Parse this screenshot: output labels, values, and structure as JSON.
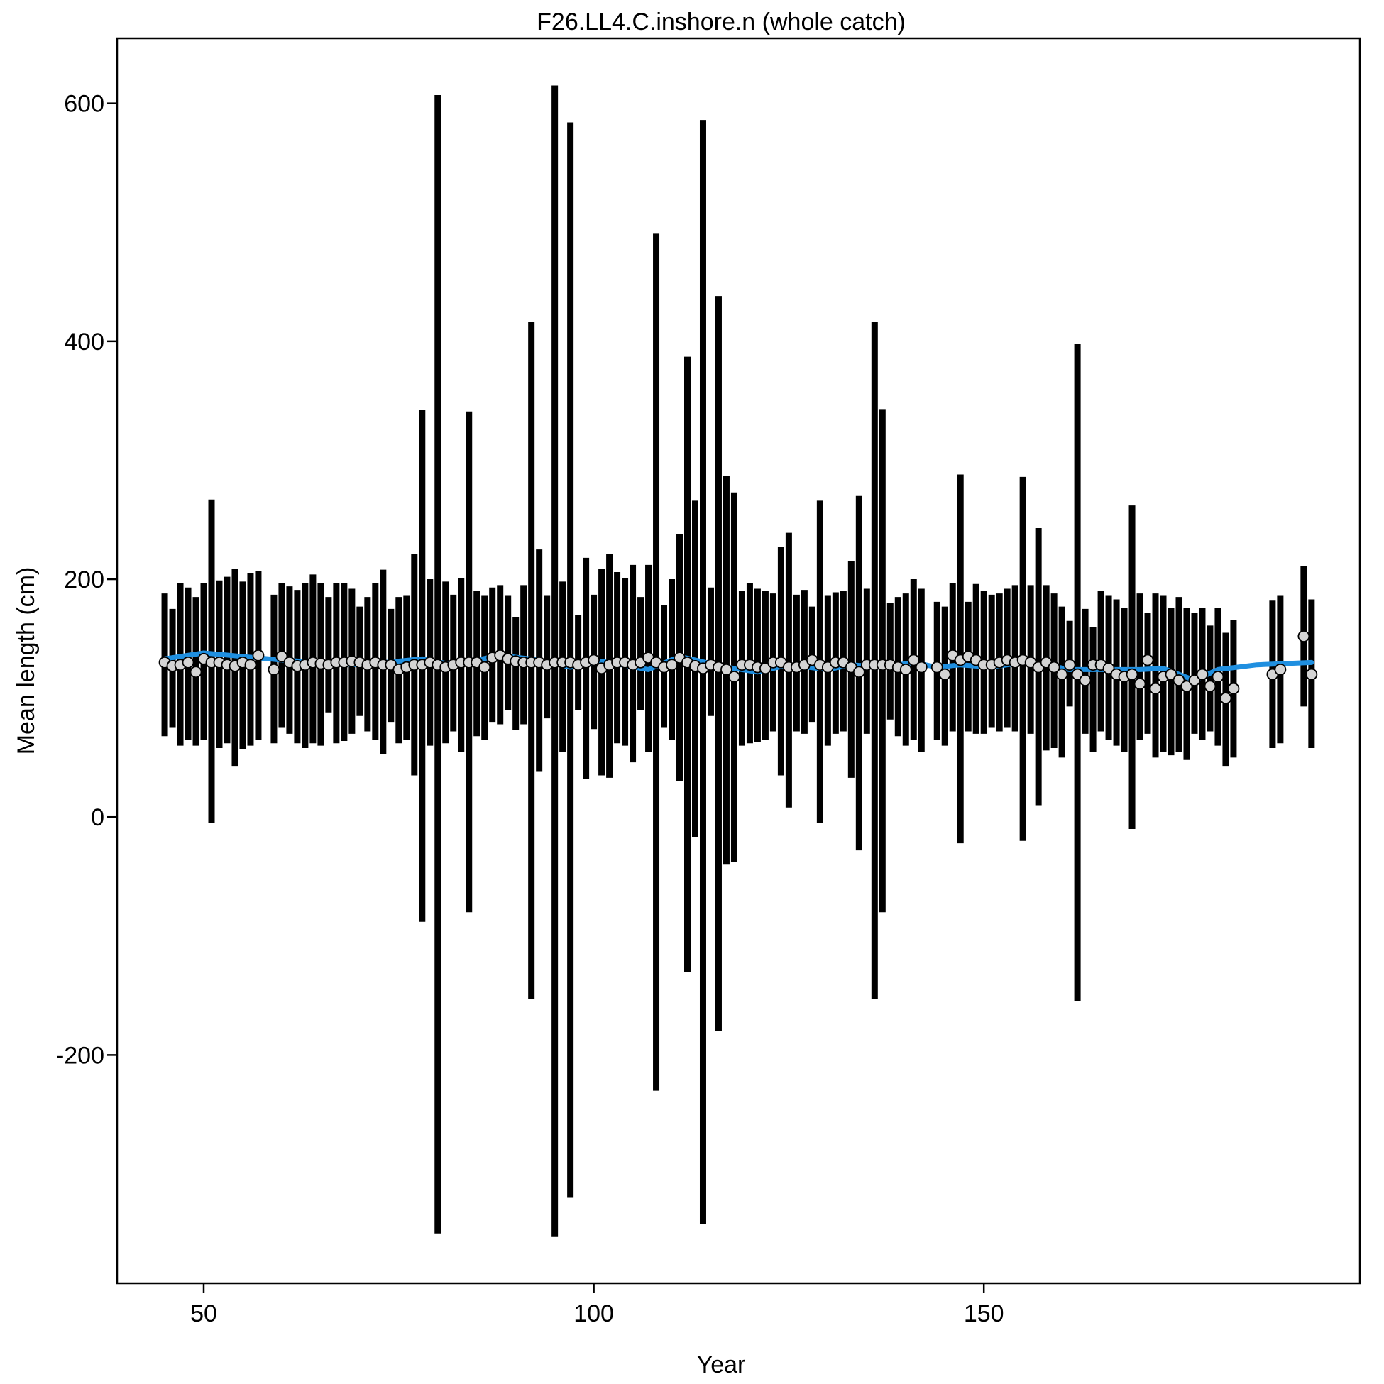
{
  "chart_data": {
    "type": "errorbar",
    "title": "F26.LL4.C.inshore.n (whole catch)",
    "xlabel": "Year",
    "ylabel": "Mean length (cm)",
    "x": [
      45,
      46,
      47,
      48,
      49,
      50,
      51,
      52,
      53,
      54,
      55,
      56,
      57,
      59,
      60,
      61,
      62,
      63,
      64,
      65,
      66,
      67,
      68,
      69,
      70,
      71,
      72,
      73,
      74,
      75,
      76,
      77,
      78,
      79,
      80,
      81,
      82,
      83,
      84,
      85,
      86,
      87,
      88,
      89,
      90,
      91,
      92,
      93,
      94,
      95,
      96,
      97,
      98,
      99,
      100,
      101,
      102,
      103,
      104,
      105,
      106,
      107,
      108,
      109,
      110,
      111,
      112,
      113,
      114,
      115,
      116,
      117,
      118,
      119,
      120,
      121,
      122,
      123,
      124,
      125,
      126,
      127,
      128,
      129,
      130,
      131,
      132,
      133,
      134,
      135,
      136,
      137,
      138,
      139,
      140,
      141,
      142,
      144,
      145,
      146,
      147,
      148,
      149,
      150,
      151,
      152,
      153,
      154,
      155,
      156,
      157,
      158,
      159,
      160,
      161,
      162,
      163,
      164,
      165,
      166,
      167,
      168,
      169,
      170,
      171,
      172,
      173,
      174,
      175,
      176,
      177,
      178,
      179,
      180,
      181,
      182,
      187,
      188,
      191,
      192
    ],
    "values": [
      130,
      127,
      128,
      130,
      122,
      133,
      130,
      130,
      128,
      127,
      130,
      128,
      136,
      124,
      135,
      130,
      127,
      128,
      130,
      129,
      128,
      130,
      130,
      131,
      130,
      128,
      130,
      128,
      128,
      124,
      126,
      128,
      128,
      130,
      128,
      126,
      128,
      130,
      130,
      130,
      126,
      134,
      136,
      133,
      131,
      130,
      130,
      130,
      128,
      130,
      130,
      130,
      128,
      130,
      132,
      125,
      128,
      130,
      130,
      128,
      130,
      134,
      130,
      126,
      128,
      134,
      130,
      127,
      125,
      128,
      126,
      124,
      118,
      128,
      128,
      126,
      125,
      130,
      130,
      126,
      126,
      128,
      132,
      128,
      126,
      130,
      130,
      126,
      122,
      128,
      128,
      128,
      128,
      126,
      124,
      132,
      126,
      126,
      120,
      136,
      132,
      135,
      132,
      128,
      128,
      130,
      132,
      130,
      132,
      130,
      126,
      130,
      126,
      120,
      128,
      120,
      115,
      128,
      128,
      125,
      120,
      118,
      120,
      112,
      132,
      108,
      118,
      120,
      115,
      110,
      115,
      120,
      110,
      118,
      100,
      108,
      120,
      124,
      152,
      120
    ],
    "upper": [
      188,
      175,
      197,
      193,
      185,
      197,
      267,
      199,
      202,
      209,
      198,
      205,
      207,
      187,
      197,
      194,
      191,
      197,
      204,
      197,
      185,
      197,
      197,
      192,
      177,
      185,
      197,
      208,
      175,
      185,
      186,
      221,
      342,
      200,
      607,
      198,
      187,
      201,
      341,
      190,
      186,
      193,
      195,
      186,
      168,
      195,
      416,
      225,
      186,
      615,
      198,
      584,
      170,
      218,
      187,
      209,
      221,
      206,
      201,
      212,
      185,
      212,
      491,
      178,
      200,
      238,
      387,
      266,
      586,
      193,
      438,
      287,
      273,
      190,
      197,
      192,
      190,
      188,
      227,
      239,
      187,
      191,
      177,
      266,
      186,
      189,
      190,
      215,
      270,
      192,
      416,
      343,
      180,
      185,
      188,
      200,
      192,
      181,
      177,
      197,
      288,
      181,
      196,
      190,
      187,
      188,
      192,
      195,
      286,
      195,
      243,
      195,
      188,
      177,
      165,
      398,
      175,
      160,
      190,
      186,
      183,
      176,
      262,
      188,
      172,
      188,
      186,
      176,
      185,
      176,
      172,
      176,
      161,
      176,
      155,
      166,
      182,
      186,
      211,
      183
    ],
    "lower": [
      68,
      75,
      60,
      65,
      60,
      65,
      -5,
      58,
      62,
      43,
      57,
      60,
      65,
      62,
      75,
      70,
      62,
      58,
      62,
      60,
      88,
      62,
      64,
      70,
      85,
      72,
      65,
      53,
      80,
      62,
      65,
      35,
      -88,
      60,
      -350,
      62,
      72,
      55,
      -80,
      68,
      65,
      80,
      78,
      90,
      73,
      78,
      -153,
      38,
      83,
      -353,
      55,
      -320,
      90,
      32,
      74,
      35,
      33,
      62,
      60,
      46,
      90,
      55,
      -230,
      75,
      65,
      30,
      -130,
      -17,
      -342,
      85,
      -180,
      -40,
      -38,
      60,
      62,
      63,
      65,
      72,
      35,
      8,
      72,
      70,
      80,
      -5,
      60,
      70,
      72,
      33,
      -28,
      70,
      -153,
      -80,
      82,
      68,
      60,
      65,
      55,
      65,
      60,
      72,
      -22,
      72,
      70,
      70,
      75,
      72,
      75,
      72,
      -20,
      70,
      10,
      56,
      58,
      50,
      93,
      -155,
      70,
      55,
      72,
      65,
      60,
      55,
      -10,
      65,
      70,
      50,
      55,
      52,
      55,
      48,
      70,
      65,
      72,
      60,
      43,
      50,
      58,
      62,
      93,
      58
    ],
    "fit": {
      "color": "#1f8fe0",
      "x": [
        45,
        50,
        60,
        70,
        78,
        82,
        88,
        93,
        97,
        101,
        107,
        111,
        117,
        121,
        125,
        130,
        133,
        137,
        141,
        144,
        147,
        151,
        155,
        158,
        161,
        170,
        173,
        177,
        180,
        185,
        192
      ],
      "values": [
        133,
        138,
        132,
        128,
        133,
        128,
        136,
        132,
        126,
        131,
        124,
        135,
        126,
        122,
        128,
        124,
        128,
        126,
        130,
        126,
        128,
        126,
        130,
        128,
        124,
        124,
        125,
        115,
        124,
        128,
        130
      ]
    },
    "xlim": [
      38.9,
      198.2
    ],
    "ylim": [
      -391.9,
      654.7
    ],
    "xticks": [
      50,
      100,
      150
    ],
    "yticks": [
      -200,
      0,
      200,
      400,
      600
    ]
  }
}
